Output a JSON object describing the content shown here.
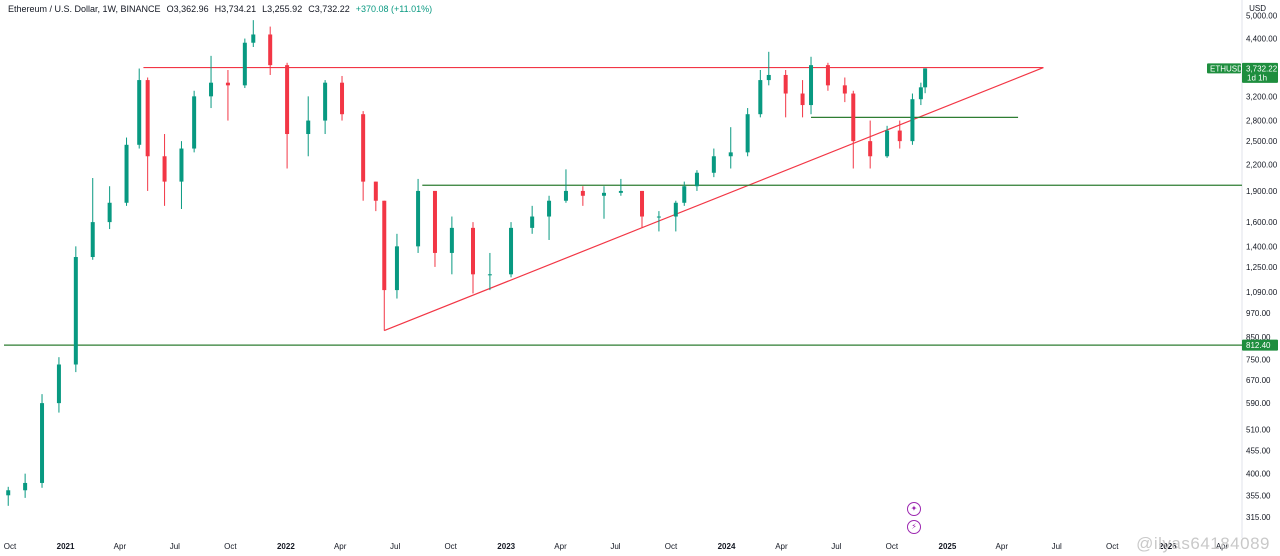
{
  "header": {
    "symbol": "Ethereum / U.S. Dollar, 1W, BINANCE",
    "open": "O3,362.96",
    "high": "H3,734.21",
    "low": "L3,255.92",
    "close": "C3,732.22",
    "change": "+370.08 (+11.01%)"
  },
  "currency_label": "USD",
  "watermark": "@ilyas64184089",
  "colors": {
    "up": "#089981",
    "down": "#f23645",
    "trendline": "#f23645",
    "support": "#2e7d32",
    "badge": "#1e8e3e",
    "icon": "#9c27b0"
  },
  "icons": [
    "sparkle-icon",
    "lightning-icon"
  ],
  "chart_data": {
    "type": "candlestick",
    "title": "Ethereum / U.S. Dollar, 1W, BINANCE",
    "xlabel": "",
    "ylabel": "",
    "log_scale": true,
    "grid": false,
    "x_range": [
      "2020-09-21",
      "2026-05-04"
    ],
    "y_range": [
      290,
      5150
    ],
    "y_ticks": [
      5000,
      4400,
      3732.22,
      3200,
      2800,
      2500,
      2200,
      1900,
      1600,
      1400,
      1250,
      1090,
      970,
      850,
      812.4,
      750,
      670,
      590,
      510,
      455,
      400,
      355,
      315
    ],
    "y_tick_labels": [
      "5,000.00",
      "4,400.00",
      "3,732.22",
      "3,200.00",
      "2,800.00",
      "2,500.00",
      "2,200.00",
      "1,900.00",
      "1,600.00",
      "1,400.00",
      "1,250.00",
      "1,090.00",
      "970.00",
      "850.00",
      "812.40",
      "750.00",
      "670.00",
      "590.00",
      "510.00",
      "455.00",
      "400.00",
      "355.00",
      "315.00"
    ],
    "x_ticks": [
      {
        "date": "2020-10-01",
        "label": "Oct"
      },
      {
        "date": "2021-01-01",
        "label": "2021"
      },
      {
        "date": "2021-04-01",
        "label": "Apr"
      },
      {
        "date": "2021-07-01",
        "label": "Jul"
      },
      {
        "date": "2021-10-01",
        "label": "Oct"
      },
      {
        "date": "2022-01-01",
        "label": "2022"
      },
      {
        "date": "2022-04-01",
        "label": "Apr"
      },
      {
        "date": "2022-07-01",
        "label": "Jul"
      },
      {
        "date": "2022-10-01",
        "label": "Oct"
      },
      {
        "date": "2023-01-01",
        "label": "2023"
      },
      {
        "date": "2023-04-01",
        "label": "Apr"
      },
      {
        "date": "2023-07-01",
        "label": "Jul"
      },
      {
        "date": "2023-10-01",
        "label": "Oct"
      },
      {
        "date": "2024-01-01",
        "label": "2024"
      },
      {
        "date": "2024-04-01",
        "label": "Apr"
      },
      {
        "date": "2024-07-01",
        "label": "Jul"
      },
      {
        "date": "2024-10-01",
        "label": "Oct"
      },
      {
        "date": "2025-01-01",
        "label": "2025"
      },
      {
        "date": "2025-04-01",
        "label": "Apr"
      },
      {
        "date": "2025-07-01",
        "label": "Jul"
      },
      {
        "date": "2025-10-01",
        "label": "Oct"
      },
      {
        "date": "2026-01-01",
        "label": "2026"
      },
      {
        "date": "2026-04-01",
        "label": "Apr"
      }
    ],
    "series": [
      {
        "name": "ETHUSD",
        "candles": [
          [
            "2020-09-28",
            355,
            372,
            335,
            365
          ],
          [
            "2020-10-26",
            365,
            400,
            350,
            380
          ],
          [
            "2020-11-23",
            380,
            620,
            370,
            590
          ],
          [
            "2020-12-21",
            590,
            760,
            560,
            730
          ],
          [
            "2021-01-18",
            730,
            1400,
            700,
            1320
          ],
          [
            "2021-02-15",
            1320,
            2040,
            1300,
            1600
          ],
          [
            "2021-03-15",
            1600,
            1950,
            1540,
            1780
          ],
          [
            "2021-04-12",
            1780,
            2550,
            1750,
            2450
          ],
          [
            "2021-05-03",
            2450,
            3730,
            2400,
            3500
          ],
          [
            "2021-05-17",
            3500,
            3550,
            1900,
            2300
          ],
          [
            "2021-06-14",
            2300,
            2600,
            1750,
            2000
          ],
          [
            "2021-07-12",
            2000,
            2500,
            1720,
            2400
          ],
          [
            "2021-08-02",
            2400,
            3300,
            2350,
            3200
          ],
          [
            "2021-08-30",
            3200,
            4000,
            3000,
            3450
          ],
          [
            "2021-09-27",
            3450,
            3700,
            2800,
            3400
          ],
          [
            "2021-10-25",
            3400,
            4400,
            3350,
            4300
          ],
          [
            "2021-11-08",
            4300,
            4870,
            4200,
            4500
          ],
          [
            "2021-12-06",
            4500,
            4700,
            3600,
            3800
          ],
          [
            "2022-01-03",
            3800,
            3850,
            2150,
            2600
          ],
          [
            "2022-02-07",
            2600,
            3200,
            2300,
            2800
          ],
          [
            "2022-03-07",
            2800,
            3500,
            2600,
            3450
          ],
          [
            "2022-04-04",
            3450,
            3580,
            2800,
            2900
          ],
          [
            "2022-05-09",
            2900,
            2950,
            1800,
            2000
          ],
          [
            "2022-05-30",
            2000,
            2000,
            1700,
            1800
          ],
          [
            "2022-06-13",
            1800,
            1800,
            880,
            1100
          ],
          [
            "2022-07-04",
            1100,
            1500,
            1050,
            1400
          ],
          [
            "2022-08-08",
            1400,
            2030,
            1350,
            1900
          ],
          [
            "2022-09-05",
            1900,
            1900,
            1250,
            1350
          ],
          [
            "2022-10-03",
            1350,
            1650,
            1200,
            1550
          ],
          [
            "2022-11-07",
            1550,
            1600,
            1080,
            1200
          ],
          [
            "2022-12-05",
            1200,
            1350,
            1100,
            1200
          ],
          [
            "2023-01-09",
            1200,
            1600,
            1180,
            1550
          ],
          [
            "2023-02-13",
            1550,
            1750,
            1500,
            1650
          ],
          [
            "2023-03-13",
            1650,
            1850,
            1450,
            1800
          ],
          [
            "2023-04-10",
            1800,
            2140,
            1780,
            1900
          ],
          [
            "2023-05-08",
            1900,
            1950,
            1750,
            1850
          ],
          [
            "2023-06-12",
            1850,
            1950,
            1630,
            1880
          ],
          [
            "2023-07-10",
            1880,
            2030,
            1850,
            1900
          ],
          [
            "2023-08-14",
            1900,
            1900,
            1550,
            1650
          ],
          [
            "2023-09-11",
            1650,
            1700,
            1520,
            1650
          ],
          [
            "2023-10-09",
            1650,
            1800,
            1520,
            1780
          ],
          [
            "2023-10-23",
            1780,
            2000,
            1750,
            1950
          ],
          [
            "2023-11-13",
            1950,
            2130,
            1900,
            2100
          ],
          [
            "2023-12-11",
            2100,
            2400,
            2050,
            2300
          ],
          [
            "2024-01-08",
            2300,
            2700,
            2150,
            2350
          ],
          [
            "2024-02-05",
            2350,
            3000,
            2300,
            2900
          ],
          [
            "2024-02-26",
            2900,
            3700,
            2850,
            3500
          ],
          [
            "2024-03-11",
            3500,
            4090,
            3400,
            3600
          ],
          [
            "2024-04-08",
            3600,
            3700,
            2850,
            3250
          ],
          [
            "2024-05-06",
            3250,
            3500,
            2850,
            3050
          ],
          [
            "2024-05-20",
            3050,
            3980,
            2900,
            3800
          ],
          [
            "2024-06-17",
            3800,
            3850,
            3300,
            3400
          ],
          [
            "2024-07-15",
            3400,
            3550,
            3100,
            3250
          ],
          [
            "2024-07-29",
            3250,
            3300,
            2150,
            2500
          ],
          [
            "2024-08-26",
            2500,
            2800,
            2150,
            2300
          ],
          [
            "2024-09-23",
            2300,
            2720,
            2280,
            2650
          ],
          [
            "2024-10-14",
            2650,
            2800,
            2400,
            2500
          ],
          [
            "2024-11-04",
            2500,
            3250,
            2450,
            3150
          ],
          [
            "2024-11-18",
            3150,
            3450,
            3050,
            3362.96
          ],
          [
            "2024-11-25",
            3362.96,
            3734.21,
            3255.92,
            3732.22
          ]
        ]
      }
    ],
    "trendlines": [
      {
        "name": "resistance",
        "points": [
          [
            "2021-05-10",
            3750
          ],
          [
            "2025-06-09",
            3750
          ]
        ],
        "color": "#f23645"
      },
      {
        "name": "ascending-support",
        "points": [
          [
            "2022-06-13",
            880
          ],
          [
            "2025-06-09",
            3750
          ]
        ],
        "color": "#f23645"
      },
      {
        "name": "support-2800",
        "points": [
          [
            "2024-05-20",
            2850
          ],
          [
            "2025-04-28",
            2850
          ]
        ],
        "color": "#2e7d32"
      },
      {
        "name": "support-1950",
        "points": [
          [
            "2022-08-15",
            1960
          ],
          [
            "2026-05-04",
            1960
          ]
        ],
        "color": "#2e7d32"
      },
      {
        "name": "support-812",
        "points": [
          [
            "2020-09-21",
            812.4
          ],
          [
            "2026-05-04",
            812.4
          ]
        ],
        "color": "#2e7d32"
      }
    ],
    "price_badges": [
      {
        "label": "ETHUSD",
        "value": "3,732.22",
        "sub": "1d 1h",
        "price": 3732.22
      },
      {
        "label": "",
        "value": "812.40",
        "sub": "",
        "price": 812.4
      }
    ]
  }
}
